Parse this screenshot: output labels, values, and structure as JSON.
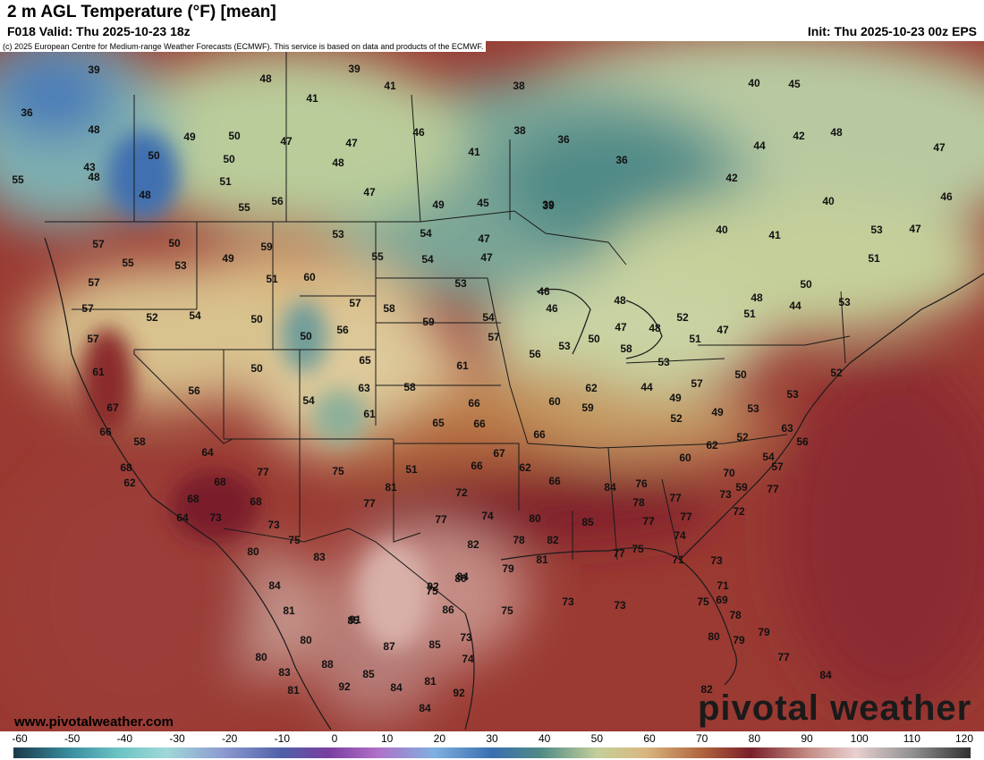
{
  "header": {
    "title": "2 m AGL Temperature (°F) [mean]",
    "valid": "F018 Valid: Thu 2025-10-23 18z",
    "init": "Init: Thu 2025-10-23 00z EPS"
  },
  "copyright": "(c) 2025 European Centre for Medium-range Weather Forecasts (ECMWF). This service is based on data and products of the ECMWF.",
  "website": "www.pivotalweather.com",
  "brand": "pivotal weather",
  "colorbar": {
    "ticks": [
      "-60",
      "-50",
      "-40",
      "-30",
      "-20",
      "-10",
      "0",
      "10",
      "20",
      "30",
      "40",
      "50",
      "60",
      "70",
      "80",
      "90",
      "100",
      "110",
      "120"
    ]
  },
  "map": {
    "temperature_labels": [
      "39",
      "48",
      "36",
      "50",
      "48",
      "49",
      "50",
      "43",
      "50",
      "55",
      "51",
      "48",
      "55",
      "56",
      "39",
      "48",
      "41",
      "41",
      "38",
      "46",
      "38",
      "36",
      "41",
      "36",
      "39",
      "47",
      "47",
      "48",
      "47",
      "49",
      "45",
      "39",
      "40",
      "45",
      "42",
      "48",
      "44",
      "47",
      "40",
      "42",
      "46",
      "41",
      "40",
      "53",
      "47",
      "51",
      "57",
      "50",
      "55",
      "53",
      "59",
      "53",
      "54",
      "55",
      "54",
      "47",
      "49",
      "51",
      "60",
      "53",
      "47",
      "57",
      "57",
      "52",
      "54",
      "50",
      "57",
      "57",
      "56",
      "58",
      "50",
      "59",
      "54",
      "65",
      "61",
      "57",
      "56",
      "53",
      "58",
      "63",
      "66",
      "61",
      "65",
      "66",
      "60",
      "59",
      "66",
      "62",
      "50",
      "56",
      "54",
      "46",
      "46",
      "48",
      "47",
      "48",
      "52",
      "51",
      "47",
      "48",
      "51",
      "44",
      "53",
      "50",
      "50",
      "58",
      "53",
      "57",
      "50",
      "44",
      "49",
      "52",
      "49",
      "53",
      "54",
      "52",
      "57",
      "56",
      "53",
      "52",
      "63",
      "62",
      "60",
      "59",
      "61",
      "67",
      "66",
      "58",
      "68",
      "62",
      "64",
      "64",
      "68",
      "68",
      "68",
      "73",
      "73",
      "75",
      "83",
      "80",
      "77",
      "75",
      "77",
      "81",
      "51",
      "67",
      "66",
      "62",
      "66",
      "72",
      "77",
      "74",
      "78",
      "81",
      "82",
      "79",
      "80",
      "80",
      "82",
      "85",
      "84",
      "76",
      "78",
      "77",
      "77",
      "77",
      "74",
      "70",
      "73",
      "72",
      "77",
      "75",
      "77",
      "71",
      "73",
      "71",
      "69",
      "73",
      "73",
      "75",
      "78",
      "80",
      "79",
      "79",
      "77",
      "84",
      "82",
      "85",
      "84",
      "81",
      "80",
      "80",
      "83",
      "81",
      "87",
      "91",
      "92",
      "88",
      "92",
      "85",
      "84",
      "81",
      "84",
      "92",
      "85",
      "75",
      "74",
      "73",
      "75",
      "86",
      "84",
      "86",
      "88",
      "91",
      "89",
      "90",
      "84"
    ]
  }
}
